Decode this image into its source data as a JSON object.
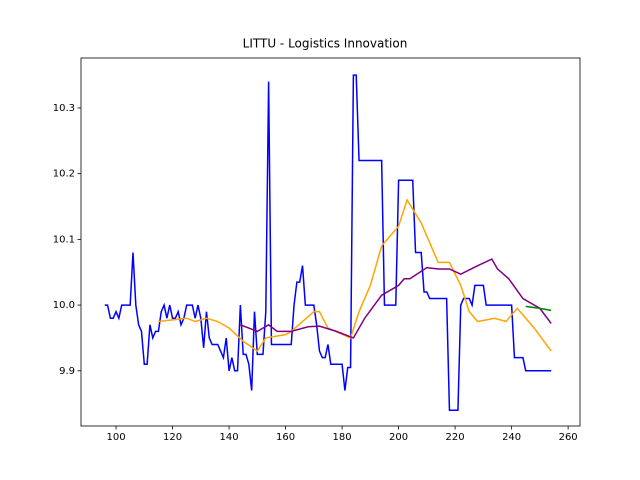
{
  "chart_data": {
    "type": "line",
    "title": "LITTU - Logistics Innovation",
    "xlim": [
      87.6,
      264.2
    ],
    "ylim": [
      9.816,
      10.376
    ],
    "xticks": [
      100,
      120,
      140,
      160,
      180,
      200,
      220,
      240,
      260
    ],
    "yticks": [
      9.9,
      {
        "value": 10,
        "label": "10.0"
      },
      10.1,
      10.2,
      10.3
    ],
    "series": [
      {
        "color": "#0000ff",
        "x": [
          96,
          97,
          98,
          99,
          100,
          101,
          102,
          105,
          106,
          107,
          108,
          109,
          110,
          111,
          112,
          113,
          114,
          115,
          116,
          117,
          118,
          119,
          120,
          121,
          122,
          123,
          124,
          125,
          127,
          128,
          129,
          130,
          131,
          132,
          133,
          134,
          136,
          137,
          138,
          139,
          140,
          141,
          142,
          143,
          144,
          145,
          146,
          147,
          148,
          149,
          150,
          152,
          153,
          154,
          155,
          162,
          163,
          164,
          165,
          166,
          167,
          170,
          171,
          172,
          173,
          174,
          175,
          176,
          180,
          181,
          182,
          183,
          184,
          185,
          186,
          194,
          195,
          199,
          200,
          205,
          206,
          208,
          209,
          210,
          211,
          217,
          218,
          221,
          222,
          223,
          225,
          226,
          227,
          230,
          231,
          240,
          241,
          244,
          245,
          254
        ],
        "values": [
          10.0,
          10.0,
          9.98,
          9.98,
          9.99,
          9.98,
          10.0,
          10.0,
          10.08,
          10.0,
          9.97,
          9.96,
          9.91,
          9.91,
          9.97,
          9.95,
          9.96,
          9.96,
          9.99,
          10.0,
          9.98,
          10.0,
          9.98,
          9.98,
          9.99,
          9.97,
          9.98,
          10.0,
          10.0,
          9.98,
          10.0,
          9.98,
          9.935,
          9.99,
          9.95,
          9.94,
          9.94,
          9.93,
          9.92,
          9.95,
          9.9,
          9.92,
          9.9,
          9.9,
          10.0,
          9.925,
          9.925,
          9.91,
          9.87,
          9.99,
          9.925,
          9.925,
          9.99,
          10.34,
          9.94,
          9.94,
          10.0,
          10.035,
          10.035,
          10.06,
          10.0,
          10.0,
          9.97,
          9.93,
          9.92,
          9.92,
          9.94,
          9.91,
          9.91,
          9.87,
          9.905,
          9.905,
          10.35,
          10.35,
          10.22,
          10.22,
          10.0,
          10.0,
          10.19,
          10.19,
          10.08,
          10.08,
          10.02,
          10.02,
          10.01,
          10.01,
          9.84,
          9.84,
          10.0,
          10.01,
          10.01,
          10.0,
          10.03,
          10.03,
          10.0,
          10.0,
          9.92,
          9.92,
          9.9,
          9.9
        ]
      },
      {
        "color": "#ffa500",
        "x": [
          115,
          125,
          128,
          132,
          136,
          140,
          145,
          150,
          153,
          160,
          162,
          166,
          170,
          172,
          175,
          183,
          186,
          190,
          194,
          200,
          203,
          208,
          214,
          218,
          222,
          225,
          228,
          234,
          238,
          242,
          248,
          254
        ],
        "values": [
          9.975,
          9.98,
          9.975,
          9.98,
          9.975,
          9.965,
          9.945,
          9.93,
          9.95,
          9.955,
          9.96,
          9.975,
          9.99,
          9.99,
          9.965,
          9.95,
          9.99,
          10.03,
          10.09,
          10.12,
          10.16,
          10.125,
          10.065,
          10.065,
          10.03,
          9.99,
          9.975,
          9.98,
          9.975,
          9.995,
          9.965,
          9.93
        ]
      },
      {
        "color": "#800080",
        "x": [
          144,
          150,
          154,
          157,
          162,
          168,
          172,
          178,
          184,
          188,
          194,
          200,
          202,
          204,
          210,
          214,
          218,
          222,
          228,
          233,
          235,
          239,
          244,
          250,
          254
        ],
        "values": [
          9.97,
          9.96,
          9.97,
          9.96,
          9.96,
          9.967,
          9.968,
          9.96,
          9.95,
          9.98,
          10.015,
          10.03,
          10.04,
          10.04,
          10.057,
          10.055,
          10.055,
          10.047,
          10.06,
          10.07,
          10.055,
          10.04,
          10.01,
          9.995,
          9.972
        ]
      },
      {
        "color": "#008000",
        "x": [
          245,
          250,
          254
        ],
        "values": [
          9.998,
          9.995,
          9.992
        ]
      }
    ]
  }
}
